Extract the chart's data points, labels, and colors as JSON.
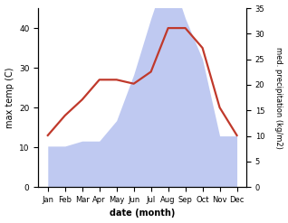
{
  "months": [
    "Jan",
    "Feb",
    "Mar",
    "Apr",
    "May",
    "Jun",
    "Jul",
    "Aug",
    "Sep",
    "Oct",
    "Nov",
    "Dec"
  ],
  "temperature": [
    13,
    18,
    22,
    27,
    27,
    26,
    29,
    40,
    40,
    35,
    20,
    13
  ],
  "precipitation": [
    8,
    8,
    9,
    9,
    13,
    22,
    33,
    43,
    33,
    25,
    10,
    10
  ],
  "temp_color": "#c0392b",
  "precip_color_fill": "#b8c4f0",
  "temp_ylim": [
    0,
    45
  ],
  "precip_ylim": [
    0,
    35
  ],
  "temp_yticks": [
    0,
    10,
    20,
    30,
    40
  ],
  "precip_yticks": [
    0,
    5,
    10,
    15,
    20,
    25,
    30,
    35
  ],
  "xlabel": "date (month)",
  "ylabel_left": "max temp (C)",
  "ylabel_right": "med. precipitation (kg/m2)",
  "background_color": "#ffffff",
  "line_width": 1.6
}
